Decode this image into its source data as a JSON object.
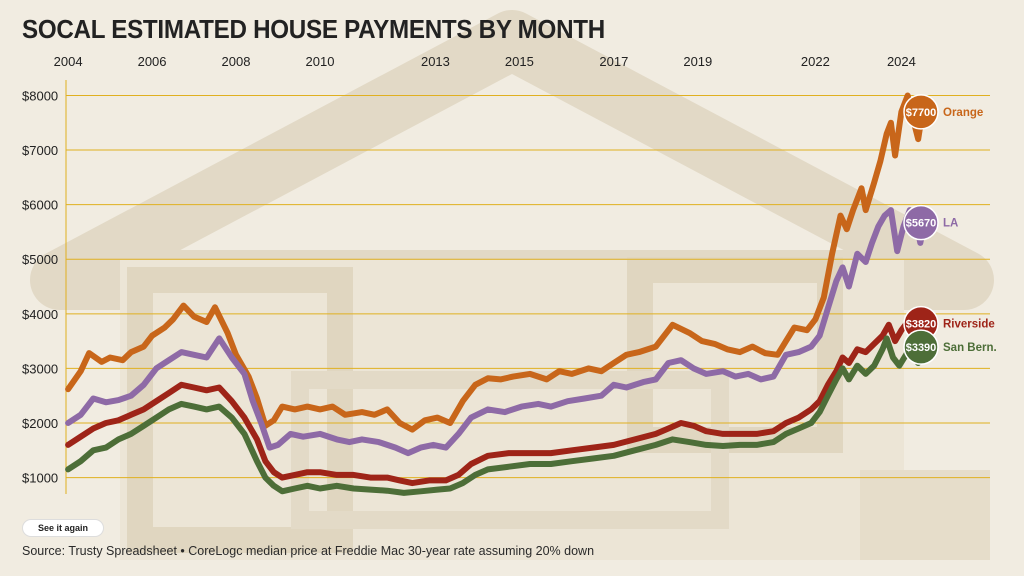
{
  "title": "SOCAL ESTIMATED HOUSE PAYMENTS BY MONTH",
  "button_label": "See it again",
  "source": "Source: Trusty Spreadsheet • CoreLogc median price at Freddie Mac 30-year rate assuming 20% down",
  "colors": {
    "Orange": "#c8661a",
    "LA": "#8e6aa6",
    "Riverside": "#9e2418",
    "San Bern.": "#4d6e38",
    "gridline": "#e0b020"
  },
  "chart_data": {
    "type": "line",
    "title": "SOCAL ESTIMATED HOUSE PAYMENTS BY MONTH",
    "xlabel": "",
    "ylabel": "",
    "x_tick_labels": [
      "2004",
      "2006",
      "2008",
      "2010",
      "2013",
      "2015",
      "2017",
      "2019",
      "2022",
      "2024"
    ],
    "x_tick_years": [
      2004,
      2006,
      2008,
      2010,
      2012.75,
      2014.75,
      2017,
      2019,
      2021.8,
      2023.85
    ],
    "xlim": [
      2003.95,
      2024.65
    ],
    "ylim": [
      700,
      8100
    ],
    "y_ticks": [
      1000,
      2000,
      3000,
      4000,
      5000,
      6000,
      7000,
      8000
    ],
    "y_tick_labels": [
      "$1000",
      "$2000",
      "$3000",
      "$4000",
      "$5000",
      "$6000",
      "$7000",
      "$8000"
    ],
    "grid": true,
    "series": [
      {
        "name": "Orange",
        "end_label": "$7700",
        "points": [
          [
            2004,
            2620
          ],
          [
            2004.3,
            2950
          ],
          [
            2004.5,
            3280
          ],
          [
            2004.8,
            3120
          ],
          [
            2005,
            3200
          ],
          [
            2005.3,
            3150
          ],
          [
            2005.5,
            3300
          ],
          [
            2005.8,
            3400
          ],
          [
            2006,
            3600
          ],
          [
            2006.3,
            3750
          ],
          [
            2006.5,
            3900
          ],
          [
            2006.75,
            4150
          ],
          [
            2007,
            3950
          ],
          [
            2007.3,
            3850
          ],
          [
            2007.5,
            4120
          ],
          [
            2007.8,
            3650
          ],
          [
            2008,
            3250
          ],
          [
            2008.3,
            2850
          ],
          [
            2008.5,
            2450
          ],
          [
            2008.7,
            1950
          ],
          [
            2008.9,
            2050
          ],
          [
            2009.1,
            2300
          ],
          [
            2009.4,
            2250
          ],
          [
            2009.7,
            2300
          ],
          [
            2010,
            2250
          ],
          [
            2010.3,
            2300
          ],
          [
            2010.6,
            2150
          ],
          [
            2011,
            2200
          ],
          [
            2011.3,
            2150
          ],
          [
            2011.6,
            2250
          ],
          [
            2011.9,
            2000
          ],
          [
            2012.2,
            1880
          ],
          [
            2012.5,
            2050
          ],
          [
            2012.8,
            2100
          ],
          [
            2013.1,
            2000
          ],
          [
            2013.4,
            2400
          ],
          [
            2013.7,
            2700
          ],
          [
            2014,
            2820
          ],
          [
            2014.3,
            2800
          ],
          [
            2014.6,
            2850
          ],
          [
            2015,
            2900
          ],
          [
            2015.4,
            2800
          ],
          [
            2015.7,
            2950
          ],
          [
            2016,
            2900
          ],
          [
            2016.4,
            3000
          ],
          [
            2016.7,
            2950
          ],
          [
            2017,
            3100
          ],
          [
            2017.3,
            3250
          ],
          [
            2017.6,
            3300
          ],
          [
            2018,
            3400
          ],
          [
            2018.4,
            3800
          ],
          [
            2018.8,
            3650
          ],
          [
            2019.1,
            3500
          ],
          [
            2019.4,
            3450
          ],
          [
            2019.7,
            3350
          ],
          [
            2020,
            3300
          ],
          [
            2020.3,
            3400
          ],
          [
            2020.6,
            3280
          ],
          [
            2020.9,
            3250
          ],
          [
            2021.1,
            3500
          ],
          [
            2021.3,
            3750
          ],
          [
            2021.6,
            3700
          ],
          [
            2021.8,
            3900
          ],
          [
            2022,
            4300
          ],
          [
            2022.2,
            5100
          ],
          [
            2022.4,
            5800
          ],
          [
            2022.55,
            5550
          ],
          [
            2022.7,
            5900
          ],
          [
            2022.9,
            6300
          ],
          [
            2023,
            5900
          ],
          [
            2023.2,
            6400
          ],
          [
            2023.35,
            6800
          ],
          [
            2023.5,
            7300
          ],
          [
            2023.6,
            7500
          ],
          [
            2023.7,
            6900
          ],
          [
            2023.85,
            7700
          ],
          [
            2024,
            8000
          ],
          [
            2024.15,
            7500
          ],
          [
            2024.25,
            7200
          ],
          [
            2024.35,
            7700
          ]
        ]
      },
      {
        "name": "LA",
        "end_label": "$5670",
        "points": [
          [
            2004,
            2000
          ],
          [
            2004.3,
            2150
          ],
          [
            2004.6,
            2450
          ],
          [
            2004.9,
            2380
          ],
          [
            2005.2,
            2420
          ],
          [
            2005.5,
            2500
          ],
          [
            2005.8,
            2700
          ],
          [
            2006.1,
            3000
          ],
          [
            2006.4,
            3150
          ],
          [
            2006.7,
            3300
          ],
          [
            2007,
            3250
          ],
          [
            2007.3,
            3200
          ],
          [
            2007.6,
            3550
          ],
          [
            2007.9,
            3200
          ],
          [
            2008.2,
            2900
          ],
          [
            2008.4,
            2400
          ],
          [
            2008.6,
            2000
          ],
          [
            2008.8,
            1550
          ],
          [
            2009,
            1600
          ],
          [
            2009.3,
            1800
          ],
          [
            2009.6,
            1750
          ],
          [
            2010,
            1800
          ],
          [
            2010.4,
            1700
          ],
          [
            2010.7,
            1650
          ],
          [
            2011,
            1700
          ],
          [
            2011.4,
            1650
          ],
          [
            2011.8,
            1550
          ],
          [
            2012.1,
            1450
          ],
          [
            2012.4,
            1550
          ],
          [
            2012.7,
            1600
          ],
          [
            2013,
            1550
          ],
          [
            2013.3,
            1800
          ],
          [
            2013.6,
            2100
          ],
          [
            2014,
            2250
          ],
          [
            2014.4,
            2200
          ],
          [
            2014.8,
            2300
          ],
          [
            2015.2,
            2350
          ],
          [
            2015.5,
            2300
          ],
          [
            2015.9,
            2400
          ],
          [
            2016.3,
            2450
          ],
          [
            2016.7,
            2500
          ],
          [
            2017,
            2700
          ],
          [
            2017.3,
            2650
          ],
          [
            2017.7,
            2750
          ],
          [
            2018,
            2800
          ],
          [
            2018.3,
            3100
          ],
          [
            2018.6,
            3150
          ],
          [
            2018.9,
            3000
          ],
          [
            2019.2,
            2900
          ],
          [
            2019.6,
            2950
          ],
          [
            2019.9,
            2850
          ],
          [
            2020.2,
            2900
          ],
          [
            2020.5,
            2800
          ],
          [
            2020.8,
            2850
          ],
          [
            2021.1,
            3250
          ],
          [
            2021.4,
            3300
          ],
          [
            2021.7,
            3400
          ],
          [
            2021.9,
            3600
          ],
          [
            2022.1,
            4100
          ],
          [
            2022.3,
            4600
          ],
          [
            2022.45,
            4850
          ],
          [
            2022.6,
            4500
          ],
          [
            2022.8,
            5100
          ],
          [
            2023,
            4950
          ],
          [
            2023.15,
            5300
          ],
          [
            2023.3,
            5600
          ],
          [
            2023.45,
            5800
          ],
          [
            2023.6,
            5900
          ],
          [
            2023.75,
            5150
          ],
          [
            2023.9,
            5600
          ],
          [
            2024.05,
            5900
          ],
          [
            2024.2,
            5700
          ],
          [
            2024.3,
            5300
          ],
          [
            2024.4,
            5670
          ]
        ]
      },
      {
        "name": "Riverside",
        "end_label": "$3820",
        "points": [
          [
            2004,
            1600
          ],
          [
            2004.3,
            1750
          ],
          [
            2004.6,
            1900
          ],
          [
            2004.9,
            2000
          ],
          [
            2005.2,
            2050
          ],
          [
            2005.5,
            2150
          ],
          [
            2005.8,
            2250
          ],
          [
            2006.1,
            2400
          ],
          [
            2006.4,
            2550
          ],
          [
            2006.7,
            2700
          ],
          [
            2007,
            2650
          ],
          [
            2007.3,
            2600
          ],
          [
            2007.6,
            2650
          ],
          [
            2007.9,
            2400
          ],
          [
            2008.2,
            2100
          ],
          [
            2008.5,
            1700
          ],
          [
            2008.7,
            1300
          ],
          [
            2008.9,
            1100
          ],
          [
            2009.1,
            1000
          ],
          [
            2009.4,
            1050
          ],
          [
            2009.7,
            1100
          ],
          [
            2010,
            1100
          ],
          [
            2010.4,
            1050
          ],
          [
            2010.8,
            1050
          ],
          [
            2011.2,
            1000
          ],
          [
            2011.6,
            1000
          ],
          [
            2011.9,
            950
          ],
          [
            2012.2,
            900
          ],
          [
            2012.6,
            950
          ],
          [
            2013,
            950
          ],
          [
            2013.3,
            1050
          ],
          [
            2013.6,
            1250
          ],
          [
            2014,
            1400
          ],
          [
            2014.5,
            1450
          ],
          [
            2015,
            1450
          ],
          [
            2015.5,
            1450
          ],
          [
            2016,
            1500
          ],
          [
            2016.5,
            1550
          ],
          [
            2017,
            1600
          ],
          [
            2017.5,
            1700
          ],
          [
            2018,
            1800
          ],
          [
            2018.3,
            1900
          ],
          [
            2018.6,
            2000
          ],
          [
            2018.9,
            1950
          ],
          [
            2019.2,
            1850
          ],
          [
            2019.6,
            1800
          ],
          [
            2020,
            1800
          ],
          [
            2020.4,
            1800
          ],
          [
            2020.8,
            1850
          ],
          [
            2021.1,
            2000
          ],
          [
            2021.4,
            2100
          ],
          [
            2021.7,
            2250
          ],
          [
            2021.9,
            2400
          ],
          [
            2022.1,
            2700
          ],
          [
            2022.3,
            2950
          ],
          [
            2022.45,
            3200
          ],
          [
            2022.6,
            3100
          ],
          [
            2022.8,
            3350
          ],
          [
            2023,
            3300
          ],
          [
            2023.2,
            3450
          ],
          [
            2023.4,
            3600
          ],
          [
            2023.55,
            3800
          ],
          [
            2023.7,
            3500
          ],
          [
            2023.85,
            3700
          ],
          [
            2024,
            3850
          ],
          [
            2024.15,
            3950
          ],
          [
            2024.25,
            3700
          ],
          [
            2024.35,
            3820
          ]
        ]
      },
      {
        "name": "San Bern.",
        "end_label": "$3390",
        "points": [
          [
            2004,
            1150
          ],
          [
            2004.3,
            1300
          ],
          [
            2004.6,
            1500
          ],
          [
            2004.9,
            1550
          ],
          [
            2005.2,
            1700
          ],
          [
            2005.5,
            1800
          ],
          [
            2005.8,
            1950
          ],
          [
            2006.1,
            2100
          ],
          [
            2006.4,
            2250
          ],
          [
            2006.7,
            2350
          ],
          [
            2007,
            2300
          ],
          [
            2007.3,
            2250
          ],
          [
            2007.6,
            2300
          ],
          [
            2007.9,
            2100
          ],
          [
            2008.2,
            1800
          ],
          [
            2008.5,
            1300
          ],
          [
            2008.7,
            1000
          ],
          [
            2008.9,
            850
          ],
          [
            2009.1,
            750
          ],
          [
            2009.4,
            800
          ],
          [
            2009.7,
            850
          ],
          [
            2010,
            800
          ],
          [
            2010.4,
            850
          ],
          [
            2010.8,
            800
          ],
          [
            2011.2,
            780
          ],
          [
            2011.6,
            760
          ],
          [
            2012,
            720
          ],
          [
            2012.4,
            750
          ],
          [
            2012.8,
            780
          ],
          [
            2013.1,
            800
          ],
          [
            2013.4,
            900
          ],
          [
            2013.7,
            1050
          ],
          [
            2014,
            1150
          ],
          [
            2014.5,
            1200
          ],
          [
            2015,
            1250
          ],
          [
            2015.5,
            1250
          ],
          [
            2016,
            1300
          ],
          [
            2016.5,
            1350
          ],
          [
            2017,
            1400
          ],
          [
            2017.5,
            1500
          ],
          [
            2018,
            1600
          ],
          [
            2018.4,
            1700
          ],
          [
            2018.8,
            1650
          ],
          [
            2019.2,
            1600
          ],
          [
            2019.6,
            1580
          ],
          [
            2020,
            1600
          ],
          [
            2020.4,
            1600
          ],
          [
            2020.8,
            1650
          ],
          [
            2021.1,
            1800
          ],
          [
            2021.4,
            1900
          ],
          [
            2021.7,
            2000
          ],
          [
            2021.9,
            2200
          ],
          [
            2022.1,
            2500
          ],
          [
            2022.3,
            2800
          ],
          [
            2022.45,
            3000
          ],
          [
            2022.6,
            2800
          ],
          [
            2022.8,
            3050
          ],
          [
            2023,
            2900
          ],
          [
            2023.2,
            3050
          ],
          [
            2023.4,
            3350
          ],
          [
            2023.5,
            3550
          ],
          [
            2023.65,
            3200
          ],
          [
            2023.8,
            3050
          ],
          [
            2024,
            3300
          ],
          [
            2024.15,
            3200
          ],
          [
            2024.25,
            3100
          ],
          [
            2024.35,
            3390
          ]
        ]
      }
    ]
  }
}
